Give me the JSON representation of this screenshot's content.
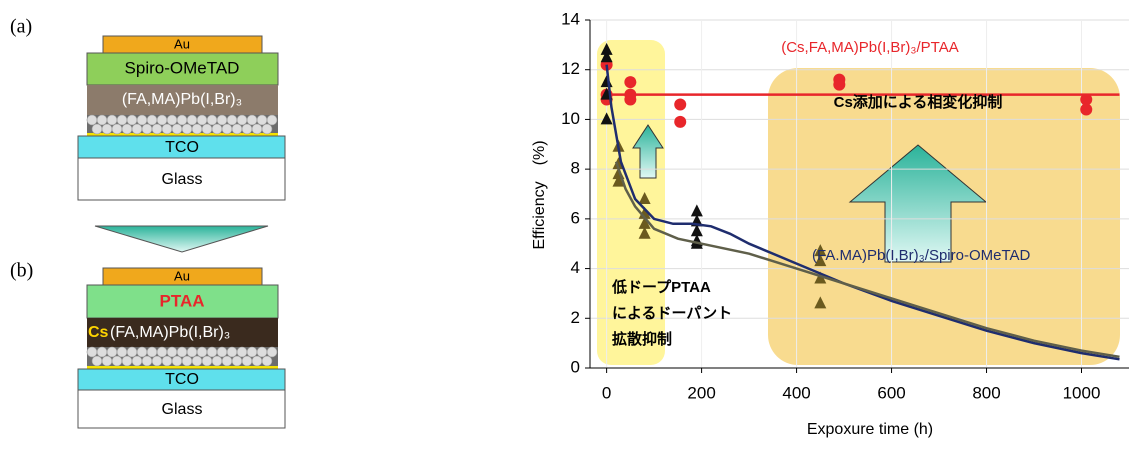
{
  "diagram": {
    "a": {
      "label": "(a)",
      "au": "Au",
      "htl": "Spiro-OMeTAD",
      "absorber": "(FA,MA)Pb(I,Br)₃",
      "tco": "TCO",
      "glass": "Glass"
    },
    "b": {
      "label": "(b)",
      "au": "Au",
      "htl": "PTAA",
      "cs": "Cs",
      "absorber": "(FA,MA)Pb(I,Br)₃",
      "tco": "TCO",
      "glass": "Glass"
    }
  },
  "chart_data": {
    "type": "scatter",
    "x_label": "Expoxure time (h)",
    "y_label": "Efficiency　(%)",
    "xlim": [
      -35,
      1100
    ],
    "ylim": [
      0,
      14
    ],
    "xticks": [
      0,
      200,
      400,
      600,
      800,
      1000
    ],
    "yticks": [
      0,
      2,
      4,
      6,
      8,
      10,
      12,
      14
    ],
    "grid": true,
    "annotations": [
      "Cs添加による相変化抑制",
      "低ドープPTAA",
      "によるドーパント",
      "拡散抑制"
    ],
    "series": [
      {
        "name": "(Cs,FA,MA)Pb(I,Br)₃/PTAA",
        "kind": "scatter",
        "marker": "circle",
        "color": "#e8262b",
        "x": [
          0,
          0,
          0,
          50,
          50,
          50,
          155,
          155,
          490,
          490,
          1010,
          1010
        ],
        "values": [
          12.2,
          11.0,
          10.8,
          11.5,
          11.0,
          10.8,
          10.6,
          9.9,
          11.6,
          11.4,
          10.8,
          10.4
        ]
      },
      {
        "kind": "line",
        "color": "#e8262b",
        "x": [
          0,
          1080
        ],
        "values": [
          11,
          11
        ]
      },
      {
        "kind": "scatter",
        "marker": "triangle",
        "color": "#111111",
        "x": [
          0,
          0,
          0,
          0,
          0,
          190,
          190,
          190,
          190,
          190
        ],
        "values": [
          12.8,
          12.5,
          11.5,
          11.0,
          10.0,
          6.3,
          5.9,
          5.5,
          5.1,
          5.0
        ]
      },
      {
        "kind": "scatter",
        "marker": "triangle",
        "color": "#6b5a1e",
        "x": [
          25,
          25,
          25,
          25,
          80,
          80,
          80,
          80,
          450,
          450,
          450,
          450
        ],
        "values": [
          8.9,
          8.2,
          7.8,
          7.5,
          6.8,
          6.2,
          5.8,
          5.4,
          4.7,
          4.3,
          3.6,
          2.6
        ]
      },
      {
        "name": "(FA.MA)Pb(I,Br)₃/Spiro-OMeTAD",
        "kind": "line",
        "color": "#1f2d6e",
        "x": [
          0,
          10,
          30,
          60,
          100,
          140,
          180,
          220,
          260,
          300,
          400,
          500,
          600,
          700,
          800,
          900,
          1000,
          1080
        ],
        "values": [
          12.2,
          10.5,
          8.3,
          6.8,
          6.0,
          5.8,
          5.8,
          5.7,
          5.4,
          5.0,
          4.2,
          3.4,
          2.7,
          2.1,
          1.5,
          1.0,
          0.6,
          0.35
        ]
      },
      {
        "kind": "line",
        "color": "#5f5f4a",
        "x": [
          20,
          40,
          60,
          100,
          150,
          200,
          300,
          400,
          500,
          600,
          700,
          800,
          900,
          1000,
          1080
        ],
        "values": [
          8.3,
          7.2,
          6.5,
          5.6,
          5.2,
          5.0,
          4.6,
          4.0,
          3.4,
          2.8,
          2.2,
          1.6,
          1.1,
          0.7,
          0.45
        ]
      }
    ]
  }
}
